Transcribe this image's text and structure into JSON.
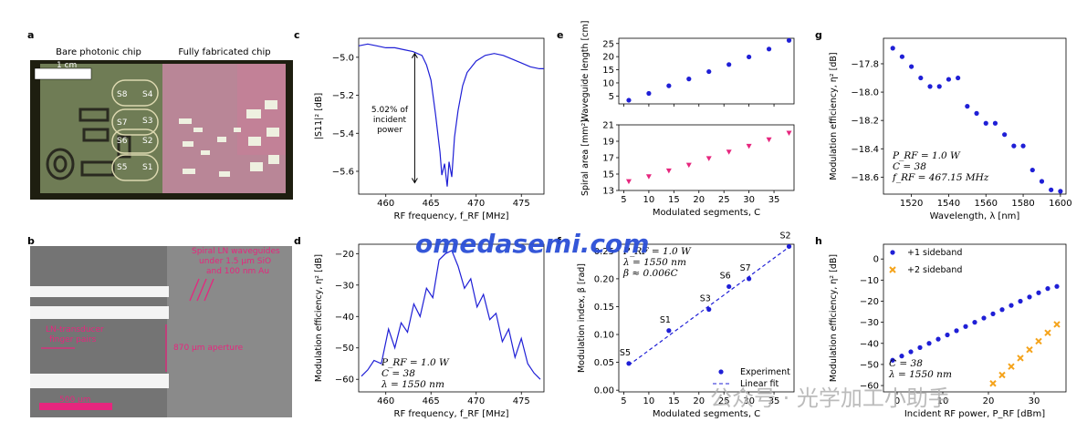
{
  "panel_letters": [
    "a",
    "b",
    "c",
    "d",
    "e",
    "f",
    "g",
    "h"
  ],
  "panel_a": {
    "title_left": "Bare photonic chip",
    "title_right": "Fully fabricated chip",
    "scale_label": "1 cm",
    "segments": [
      "S8",
      "S4",
      "S7",
      "S3",
      "S6",
      "S2",
      "S5",
      "S1"
    ]
  },
  "panel_b": {
    "note_top": [
      "Spiral LN waveguides",
      "under 1.5 μm SiO",
      "and 100 nm Au"
    ],
    "label_electrodes": [
      "LN-transducer",
      "finger pairs"
    ],
    "label_aperture": "870 μm aperture",
    "scale_label": "500 μm"
  },
  "watermark": {
    "brand": "omedasemi.com",
    "wechat": "公众号 · 光学加工小助手"
  },
  "colors": {
    "blue": "#1f1fd6",
    "magenta": "#e6267e",
    "orange": "#f5a31a"
  },
  "chart_data": [
    {
      "panel": "c",
      "type": "line",
      "xlabel": "RF frequency, f_RF [MHz]",
      "ylabel": "|S11|² [dB]",
      "xlim": [
        457,
        477.5
      ],
      "ylim": [
        -5.72,
        -4.9
      ],
      "xticks": [
        460,
        465,
        470,
        475
      ],
      "yticks": [
        -5.0,
        -5.2,
        -5.4,
        -5.6
      ],
      "tick_labels_y": [
        "−5.0",
        "−5.2",
        "−5.4",
        "−5.6"
      ],
      "annotation": [
        "5.02% of",
        "incident",
        "power"
      ],
      "series": [
        {
          "name": "S11",
          "x": [
            457,
            458,
            459,
            460,
            461,
            462,
            463,
            464,
            464.5,
            465,
            465.5,
            466,
            466.2,
            466.5,
            466.8,
            467,
            467.3,
            467.6,
            468,
            468.5,
            469,
            470,
            471,
            472,
            473,
            474,
            475,
            476,
            477,
            477.5
          ],
          "y": [
            -4.94,
            -4.93,
            -4.94,
            -4.95,
            -4.95,
            -4.96,
            -4.97,
            -4.99,
            -5.04,
            -5.12,
            -5.3,
            -5.5,
            -5.62,
            -5.56,
            -5.68,
            -5.55,
            -5.63,
            -5.42,
            -5.28,
            -5.15,
            -5.08,
            -5.02,
            -4.99,
            -4.98,
            -4.99,
            -5.01,
            -5.03,
            -5.05,
            -5.06,
            -5.06
          ]
        }
      ]
    },
    {
      "panel": "d",
      "type": "line",
      "xlabel": "RF frequency, f_RF [MHz]",
      "ylabel": "Modulation efficiency, η² [dB]",
      "xlim": [
        457,
        477.5
      ],
      "ylim": [
        -64,
        -17
      ],
      "xticks": [
        460,
        465,
        470,
        475
      ],
      "yticks": [
        -20,
        -30,
        -40,
        -50,
        -60
      ],
      "tick_labels_y": [
        "−20",
        "−30",
        "−40",
        "−50",
        "−60"
      ],
      "params": [
        "P_RF = 1.0 W",
        "C = 38",
        "λ = 1550 nm"
      ],
      "series": [
        {
          "name": "efficiency",
          "x": [
            457.3,
            458,
            458.7,
            459.5,
            460.3,
            461,
            461.7,
            462.4,
            463.1,
            463.8,
            464.5,
            465.2,
            465.9,
            466.6,
            467.3,
            468,
            468.7,
            469.4,
            470.1,
            470.8,
            471.5,
            472.2,
            472.9,
            473.6,
            474.3,
            475,
            475.7,
            476.4,
            477.1
          ],
          "y": [
            -59,
            -57,
            -54,
            -55,
            -44,
            -50,
            -42,
            -45,
            -36,
            -40,
            -31,
            -34,
            -22,
            -20,
            -19,
            -24,
            -31,
            -28,
            -37,
            -33,
            -41,
            -39,
            -48,
            -44,
            -53,
            -47,
            -55,
            -58,
            -60
          ]
        }
      ]
    },
    {
      "panel": "e-top",
      "type": "scatter",
      "xlabel": "",
      "ylabel": "Waveguide length [cm]",
      "xlim": [
        4,
        39
      ],
      "ylim": [
        2,
        27
      ],
      "xticks": [
        5,
        10,
        15,
        20,
        25,
        30,
        35
      ],
      "yticks": [
        5,
        10,
        15,
        20,
        25
      ],
      "series": [
        {
          "name": "length",
          "x": [
            6,
            10,
            14,
            18,
            22,
            26,
            30,
            34,
            38
          ],
          "y": [
            3.4,
            6.0,
            8.9,
            11.5,
            14.3,
            17.0,
            19.9,
            22.9,
            26.2
          ]
        }
      ]
    },
    {
      "panel": "e-bottom",
      "type": "scatter",
      "xlabel": "Modulated segments, C",
      "ylabel": "Spiral area [mm²]",
      "xlim": [
        4,
        39
      ],
      "ylim": [
        13,
        21
      ],
      "xticks": [
        5,
        10,
        15,
        20,
        25,
        30,
        35
      ],
      "yticks": [
        13,
        15,
        17,
        19,
        21
      ],
      "series": [
        {
          "name": "area",
          "x": [
            6,
            10,
            14,
            18,
            22,
            26,
            30,
            34,
            38
          ],
          "y": [
            14.1,
            14.7,
            15.4,
            16.1,
            16.9,
            17.7,
            18.4,
            19.2,
            20.0
          ]
        }
      ]
    },
    {
      "panel": "f",
      "type": "scatter",
      "xlabel": "Modulated segments, C",
      "ylabel": "Modulation index, β [rad]",
      "xlim": [
        4,
        39
      ],
      "ylim": [
        -0.003,
        0.262
      ],
      "xticks": [
        5,
        10,
        15,
        20,
        25,
        30,
        35
      ],
      "yticks": [
        0.0,
        0.05,
        0.1,
        0.15,
        0.2,
        0.25
      ],
      "tick_labels_y": [
        "0.00",
        "0.05",
        "0.10",
        "0.15",
        "0.20",
        "0.25"
      ],
      "params": [
        "P_RF = 1.0 W",
        "λ = 1550 nm",
        "β ≈ 0.006C"
      ],
      "points": [
        {
          "label": "S5",
          "x": 6,
          "y": 0.048
        },
        {
          "label": "S1",
          "x": 14,
          "y": 0.107
        },
        {
          "label": "S3",
          "x": 22,
          "y": 0.145
        },
        {
          "label": "S6",
          "x": 26,
          "y": 0.186
        },
        {
          "label": "S7",
          "x": 30,
          "y": 0.2
        },
        {
          "label": "S2",
          "x": 38,
          "y": 0.258
        }
      ],
      "fit": {
        "x": [
          6,
          38
        ],
        "y": [
          0.045,
          0.257
        ]
      },
      "legend": [
        "Experiment",
        "Linear fit"
      ]
    },
    {
      "panel": "g",
      "type": "scatter",
      "xlabel": "Wavelength, λ [nm]",
      "ylabel": "Modulation efficiency, η² [dB]",
      "xlim": [
        1505,
        1603
      ],
      "ylim": [
        -18.72,
        -17.62
      ],
      "xticks": [
        1520,
        1540,
        1560,
        1580,
        1600
      ],
      "yticks": [
        -17.8,
        -18.0,
        -18.2,
        -18.4,
        -18.6
      ],
      "tick_labels_y": [
        "−17.8",
        "−18.0",
        "−18.2",
        "−18.4",
        "−18.6"
      ],
      "params": [
        "P_RF = 1.0 W",
        "C = 38",
        "f_RF = 467.15 MHz"
      ],
      "series": [
        {
          "name": "efficiency",
          "x": [
            1510,
            1515,
            1520,
            1525,
            1530,
            1535,
            1540,
            1545,
            1550,
            1555,
            1560,
            1565,
            1570,
            1575,
            1580,
            1585,
            1590,
            1595,
            1600
          ],
          "y": [
            -17.69,
            -17.75,
            -17.82,
            -17.9,
            -17.96,
            -17.96,
            -17.91,
            -17.9,
            -18.1,
            -18.15,
            -18.22,
            -18.22,
            -18.3,
            -18.38,
            -18.38,
            -18.55,
            -18.63,
            -18.69,
            -18.7
          ]
        }
      ]
    },
    {
      "panel": "h",
      "type": "scatter",
      "xlabel": "Incident RF power, P_RF [dBm]",
      "ylabel": "Modulation efficiency, η² [dB]",
      "xlim": [
        -3,
        37
      ],
      "ylim": [
        -63,
        7
      ],
      "xticks": [
        0,
        10,
        20,
        30
      ],
      "yticks": [
        0,
        -10,
        -20,
        -30,
        -40,
        -50,
        -60
      ],
      "tick_labels_y": [
        "0",
        "−10",
        "−20",
        "−30",
        "−40",
        "−50",
        "−60"
      ],
      "params": [
        "C = 38",
        "λ = 1550 nm"
      ],
      "legend": [
        "+1 sideband",
        "+2 sideband"
      ],
      "series": [
        {
          "name": "+1 sideband",
          "x": [
            -1,
            1,
            3,
            5,
            7,
            9,
            11,
            13,
            15,
            17,
            19,
            21,
            23,
            25,
            27,
            29,
            31,
            33,
            35
          ],
          "y": [
            -48,
            -46,
            -44,
            -42,
            -40,
            -38,
            -36,
            -34,
            -32,
            -30,
            -28,
            -26,
            -24,
            -22,
            -20,
            -18,
            -16,
            -14,
            -13
          ]
        },
        {
          "name": "+2 sideband",
          "x": [
            21,
            23,
            25,
            27,
            29,
            31,
            33,
            35
          ],
          "y": [
            -59,
            -55,
            -51,
            -47,
            -43,
            -39,
            -35,
            -31
          ]
        }
      ]
    }
  ]
}
